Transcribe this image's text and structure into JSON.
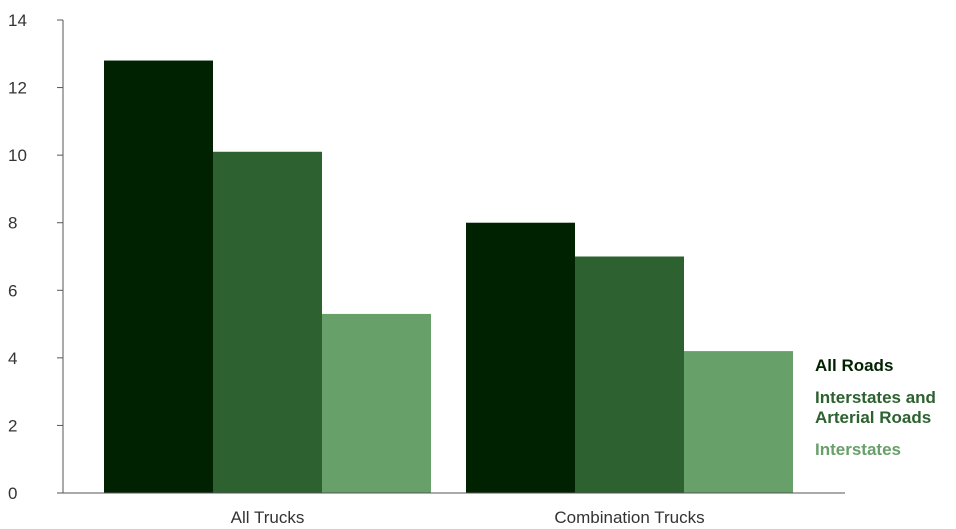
{
  "chart_data": {
    "type": "bar",
    "categories": [
      "All Trucks",
      "Combination Trucks"
    ],
    "series": [
      {
        "name": "All Roads",
        "color": "#002200",
        "values": [
          12.8,
          8.0
        ]
      },
      {
        "name": "Interstates and Arterial Roads",
        "color": "#2d6130",
        "values": [
          10.1,
          7.0
        ]
      },
      {
        "name": "Interstates",
        "color": "#68a069",
        "values": [
          5.3,
          4.2
        ]
      }
    ],
    "ylim": [
      0,
      14
    ],
    "yticks": [
      0,
      2,
      4,
      6,
      8,
      10,
      12,
      14
    ],
    "grid": false,
    "legend_position": "right",
    "legend": {
      "items": [
        {
          "label": "All Roads",
          "color": "#002200"
        },
        {
          "label": "Interstates and Arterial Roads",
          "color": "#2d6130"
        },
        {
          "label": "Interstates",
          "color": "#68a069"
        }
      ]
    }
  }
}
